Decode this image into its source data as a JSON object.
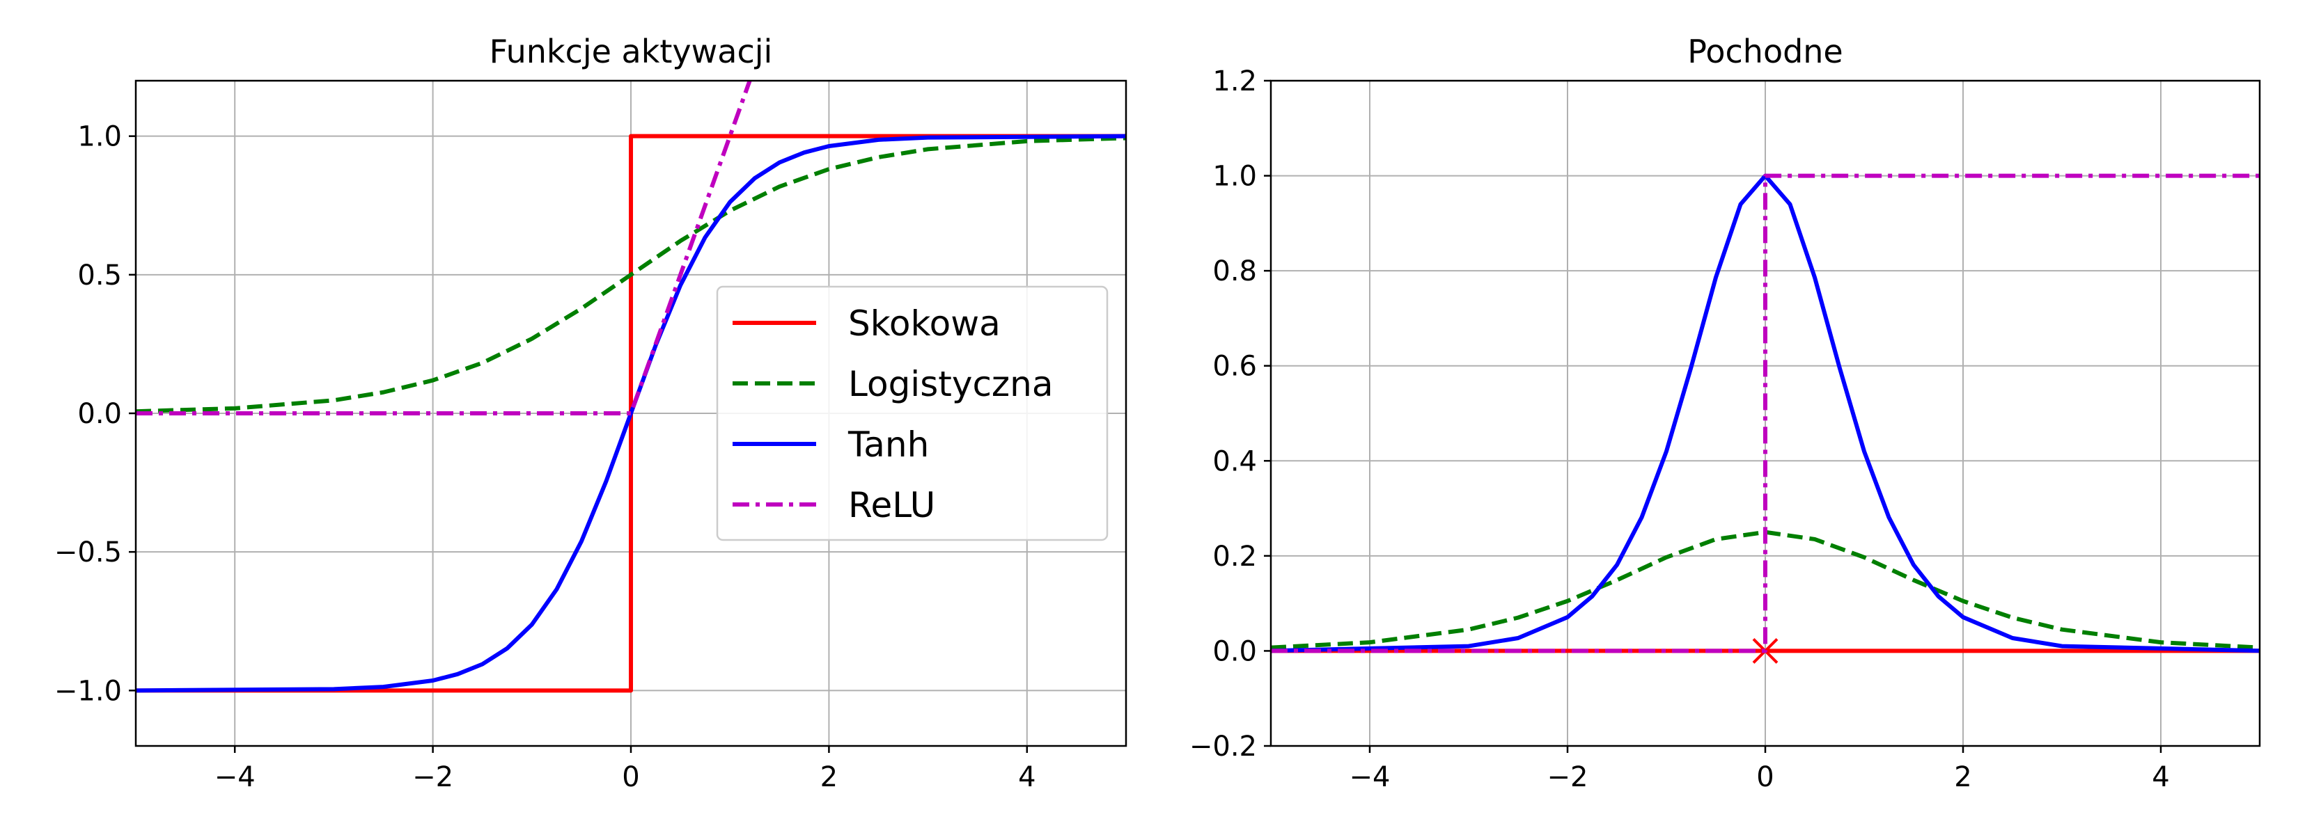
{
  "chart_data": [
    {
      "type": "line",
      "title": "Funkcje aktywacji",
      "xlim": [
        -5,
        5
      ],
      "ylim": [
        -1.2,
        1.2
      ],
      "xticks": [
        -4,
        -2,
        0,
        2,
        4
      ],
      "xtick_labels": [
        "−4",
        "−2",
        "0",
        "2",
        "4"
      ],
      "yticks": [
        -1.0,
        -0.5,
        0.0,
        0.5,
        1.0
      ],
      "ytick_labels": [
        "−1.0",
        "−0.5",
        "0.0",
        "0.5",
        "1.0"
      ],
      "grid": true,
      "legend": {
        "placement": "center-right",
        "entries": [
          {
            "label": "Skokowa",
            "color": "#ff0000",
            "style": "solid"
          },
          {
            "label": "Logistyczna",
            "color": "#007f00",
            "style": "dashed"
          },
          {
            "label": "Tanh",
            "color": "#0000ff",
            "style": "solid"
          },
          {
            "label": "ReLU",
            "color": "#bf00bf",
            "style": "dashdot"
          }
        ]
      },
      "series": [
        {
          "name": "Skokowa",
          "color": "#ff0000",
          "style": "solid",
          "x": [
            -5,
            0,
            0,
            5
          ],
          "y": [
            -1,
            -1,
            1,
            1
          ]
        },
        {
          "name": "Logistyczna",
          "color": "#007f00",
          "style": "dashed",
          "x": [
            -5,
            -4,
            -3,
            -2.5,
            -2,
            -1.5,
            -1,
            -0.5,
            0,
            0.5,
            1,
            1.5,
            2,
            2.5,
            3,
            4,
            5
          ],
          "y": [
            0.007,
            0.018,
            0.047,
            0.076,
            0.119,
            0.182,
            0.269,
            0.378,
            0.5,
            0.622,
            0.731,
            0.818,
            0.881,
            0.924,
            0.953,
            0.982,
            0.993
          ]
        },
        {
          "name": "Tanh",
          "color": "#0000ff",
          "style": "solid",
          "x": [
            -5,
            -3,
            -2.5,
            -2,
            -1.75,
            -1.5,
            -1.25,
            -1,
            -0.75,
            -0.5,
            -0.25,
            0,
            0.25,
            0.5,
            0.75,
            1,
            1.25,
            1.5,
            1.75,
            2,
            2.5,
            3,
            5
          ],
          "y": [
            -1.0,
            -0.995,
            -0.987,
            -0.964,
            -0.941,
            -0.905,
            -0.848,
            -0.762,
            -0.635,
            -0.462,
            -0.245,
            0,
            0.245,
            0.462,
            0.635,
            0.762,
            0.848,
            0.905,
            0.941,
            0.964,
            0.987,
            0.995,
            1.0
          ]
        },
        {
          "name": "ReLU",
          "color": "#bf00bf",
          "style": "dashdot",
          "x": [
            -5,
            0,
            1.2
          ],
          "y": [
            0,
            0,
            1.2
          ]
        }
      ]
    },
    {
      "type": "line",
      "title": "Pochodne",
      "xlim": [
        -5,
        5
      ],
      "ylim": [
        -0.2,
        1.2
      ],
      "xticks": [
        -4,
        -2,
        0,
        2,
        4
      ],
      "xtick_labels": [
        "−4",
        "−2",
        "0",
        "2",
        "4"
      ],
      "yticks": [
        -0.2,
        0.0,
        0.2,
        0.4,
        0.6,
        0.8,
        1.0,
        1.2
      ],
      "ytick_labels": [
        "−0.2",
        "0.0",
        "0.2",
        "0.4",
        "0.6",
        "0.8",
        "1.0",
        "1.2"
      ],
      "grid": true,
      "series": [
        {
          "color": "#ff0000",
          "style": "solid",
          "x": [
            -5,
            5
          ],
          "y": [
            0,
            0
          ]
        },
        {
          "color": "#ff0000",
          "style": "marker-x",
          "x": [
            0
          ],
          "y": [
            0
          ]
        },
        {
          "color": "#007f00",
          "style": "dashed",
          "x": [
            -5,
            -4,
            -3,
            -2.5,
            -2,
            -1.5,
            -1,
            -0.5,
            0,
            0.5,
            1,
            1.5,
            2,
            2.5,
            3,
            4,
            5
          ],
          "y": [
            0.007,
            0.018,
            0.045,
            0.07,
            0.105,
            0.149,
            0.197,
            0.235,
            0.25,
            0.235,
            0.197,
            0.149,
            0.105,
            0.07,
            0.045,
            0.018,
            0.007
          ]
        },
        {
          "color": "#0000ff",
          "style": "solid",
          "x": [
            -5,
            -3,
            -2.5,
            -2,
            -1.75,
            -1.5,
            -1.25,
            -1,
            -0.75,
            -0.5,
            -0.25,
            0,
            0.25,
            0.5,
            0.75,
            1,
            1.25,
            1.5,
            1.75,
            2,
            2.5,
            3,
            5
          ],
          "y": [
            0.0002,
            0.01,
            0.027,
            0.071,
            0.115,
            0.181,
            0.281,
            0.42,
            0.597,
            0.786,
            0.94,
            1.0,
            0.94,
            0.786,
            0.597,
            0.42,
            0.281,
            0.181,
            0.115,
            0.071,
            0.027,
            0.01,
            0.0002
          ]
        },
        {
          "color": "#bf00bf",
          "style": "dashdot",
          "x": [
            -5,
            0,
            0,
            5
          ],
          "y": [
            0,
            0,
            1,
            1
          ]
        }
      ]
    }
  ]
}
